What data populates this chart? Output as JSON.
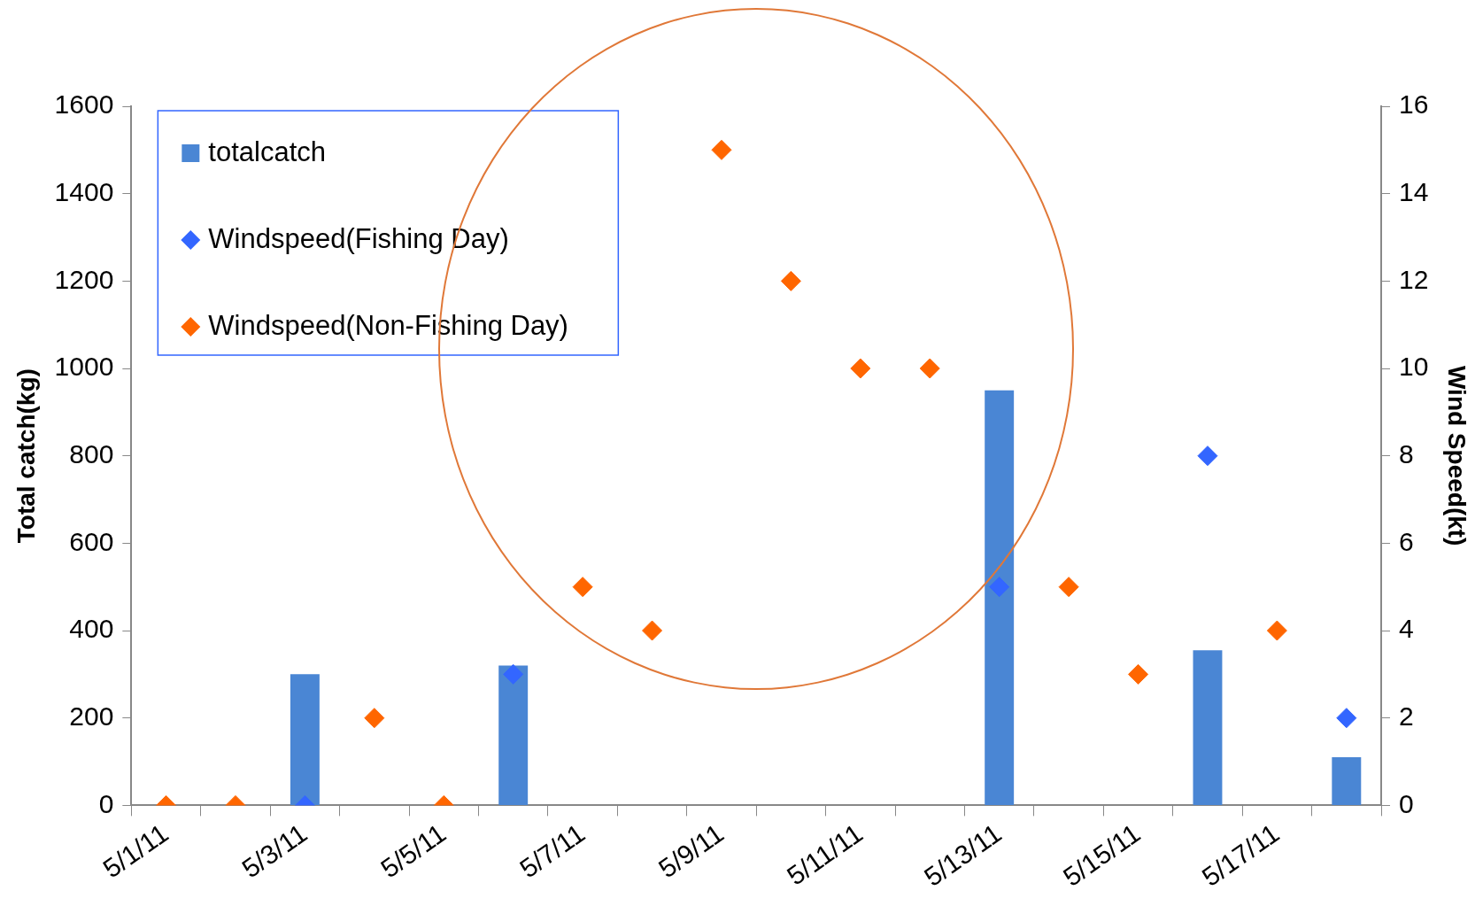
{
  "chart_data": {
    "type": "bar",
    "ylabel": "Total catch(kg)",
    "y2label": "Wind Speed(kt)",
    "categories": [
      "5/1/11",
      null,
      "5/3/11",
      null,
      "5/5/11",
      null,
      "5/7/11",
      null,
      "5/9/11",
      null,
      "5/11/11",
      null,
      "5/13/11",
      null,
      "5/15/11",
      null,
      "5/17/11",
      null
    ],
    "series": [
      {
        "name": "totalcatch",
        "color": "#4a86d4",
        "values": [
          0,
          0,
          300,
          null,
          0,
          320,
          null,
          null,
          null,
          null,
          null,
          null,
          950,
          null,
          null,
          355,
          null,
          110
        ]
      },
      {
        "name": "Windspeed(Fishing Day)",
        "type": "scatter",
        "axis": "y2",
        "color": "#3366ff",
        "values": [
          null,
          null,
          0,
          null,
          null,
          3,
          null,
          null,
          null,
          null,
          null,
          null,
          5,
          null,
          null,
          8,
          null,
          2
        ]
      },
      {
        "name": "Windspeed(Non-Fishing Day)",
        "type": "scatter",
        "axis": "y2",
        "color": "#ff6600",
        "values": [
          0,
          0,
          null,
          2,
          0,
          null,
          5,
          4,
          15,
          12,
          10,
          10,
          null,
          5,
          3,
          null,
          4,
          null
        ]
      }
    ],
    "ylim": [
      0,
      1600
    ],
    "yticks": [
      0,
      200,
      400,
      600,
      800,
      1000,
      1200,
      1400,
      1600
    ],
    "y2lim": [
      0,
      16
    ],
    "y2ticks": [
      0,
      2,
      4,
      6,
      8,
      10,
      12,
      14,
      16
    ],
    "marker": "diamond",
    "grid": false,
    "legend": "top left"
  }
}
